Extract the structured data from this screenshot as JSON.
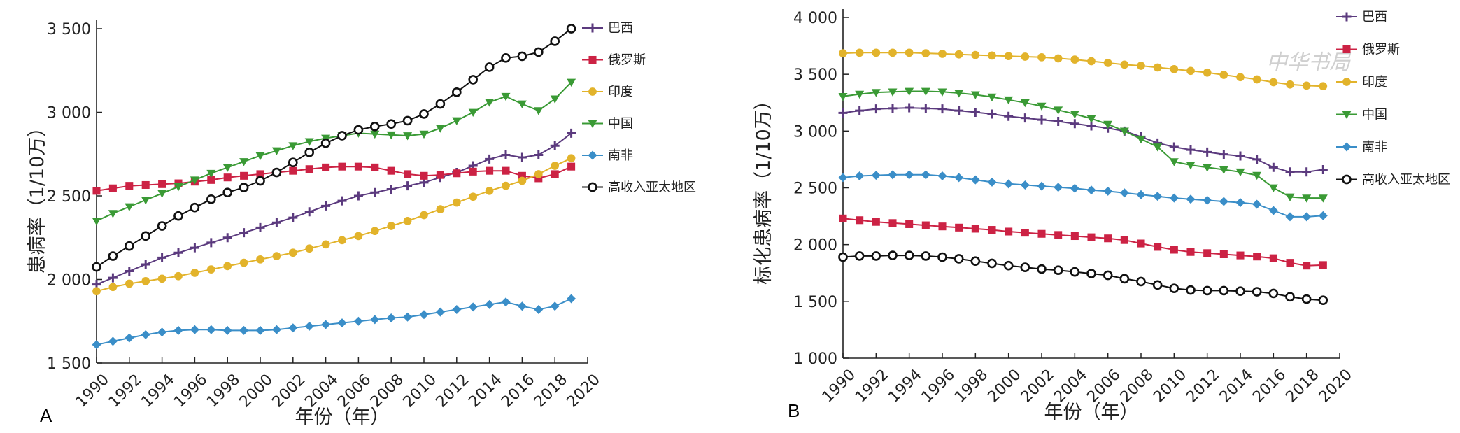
{
  "watermark": "中华书局",
  "chart_data": [
    {
      "panel": "A",
      "type": "line",
      "xlabel": "年份（年）",
      "ylabel": "患病率（1/10万）",
      "ylim": [
        1500,
        3500
      ],
      "yticks": [
        1500,
        2000,
        2500,
        3000,
        3500
      ],
      "ytick_labels": [
        "1 500",
        "2 000",
        "2 500",
        "3 000",
        "3 500"
      ],
      "xlim": [
        1990,
        2020
      ],
      "xticks": [
        "1990",
        "1992",
        "1994",
        "1996",
        "1998",
        "2000",
        "2002",
        "2004",
        "2006",
        "2008",
        "2010",
        "2012",
        "2014",
        "2016",
        "2018",
        "2020"
      ],
      "legend_position": "top-right",
      "x": [
        1990,
        1991,
        1992,
        1993,
        1994,
        1995,
        1996,
        1997,
        1998,
        1999,
        2000,
        2001,
        2002,
        2003,
        2004,
        2005,
        2006,
        2007,
        2008,
        2009,
        2010,
        2011,
        2012,
        2013,
        2014,
        2015,
        2016,
        2017,
        2018,
        2019
      ],
      "series": [
        {
          "name": "巴西",
          "color": "#5b3a7e",
          "marker": "plus",
          "values": [
            1970,
            2010,
            2050,
            2090,
            2130,
            2160,
            2190,
            2220,
            2250,
            2280,
            2310,
            2340,
            2370,
            2405,
            2440,
            2470,
            2500,
            2520,
            2540,
            2560,
            2580,
            2610,
            2640,
            2680,
            2720,
            2745,
            2730,
            2745,
            2800,
            2875
          ]
        },
        {
          "name": "俄罗斯",
          "color": "#cc2244",
          "marker": "square",
          "values": [
            2530,
            2545,
            2560,
            2565,
            2570,
            2575,
            2585,
            2595,
            2610,
            2620,
            2630,
            2640,
            2650,
            2660,
            2670,
            2675,
            2675,
            2670,
            2650,
            2630,
            2620,
            2625,
            2635,
            2645,
            2650,
            2650,
            2620,
            2605,
            2630,
            2675
          ]
        },
        {
          "name": "印度",
          "color": "#e2b32b",
          "marker": "circle",
          "values": [
            1930,
            1955,
            1975,
            1990,
            2005,
            2020,
            2040,
            2060,
            2080,
            2100,
            2120,
            2140,
            2160,
            2185,
            2210,
            2235,
            2260,
            2290,
            2320,
            2350,
            2385,
            2420,
            2460,
            2495,
            2530,
            2560,
            2590,
            2630,
            2680,
            2725
          ]
        },
        {
          "name": "中国",
          "color": "#3a9a35",
          "marker": "triangle",
          "values": [
            2350,
            2395,
            2435,
            2475,
            2515,
            2555,
            2595,
            2635,
            2670,
            2705,
            2740,
            2770,
            2800,
            2825,
            2845,
            2860,
            2875,
            2870,
            2865,
            2860,
            2870,
            2905,
            2950,
            3000,
            3060,
            3095,
            3050,
            3010,
            3080,
            3180
          ]
        },
        {
          "name": "南非",
          "color": "#3a8ec8",
          "marker": "diamond",
          "values": [
            1610,
            1630,
            1650,
            1670,
            1685,
            1695,
            1700,
            1700,
            1695,
            1695,
            1695,
            1700,
            1710,
            1720,
            1730,
            1740,
            1750,
            1760,
            1770,
            1775,
            1790,
            1805,
            1820,
            1835,
            1850,
            1865,
            1840,
            1820,
            1840,
            1885
          ]
        },
        {
          "name": "高收入亚太地区",
          "color": "#111111",
          "marker": "ocircle",
          "values": [
            2075,
            2140,
            2200,
            2260,
            2320,
            2380,
            2430,
            2480,
            2520,
            2550,
            2590,
            2640,
            2700,
            2760,
            2815,
            2860,
            2895,
            2915,
            2930,
            2950,
            2990,
            3050,
            3120,
            3195,
            3270,
            3325,
            3335,
            3360,
            3425,
            3500
          ]
        }
      ]
    },
    {
      "panel": "B",
      "type": "line",
      "xlabel": "年份（年）",
      "ylabel": "标化患病率（1/10万）",
      "ylim": [
        1000,
        4000
      ],
      "yticks": [
        1000,
        1500,
        2000,
        2500,
        3000,
        3500,
        4000
      ],
      "ytick_labels": [
        "1 000",
        "1 500",
        "2 000",
        "2 500",
        "3 000",
        "3 500",
        "4 000"
      ],
      "xlim": [
        1990,
        2020
      ],
      "xticks": [
        "1990",
        "1992",
        "1994",
        "1996",
        "1998",
        "2000",
        "2002",
        "2004",
        "2006",
        "2008",
        "2010",
        "2012",
        "2014",
        "2016",
        "2018",
        "2020"
      ],
      "legend_position": "top-right",
      "x": [
        1990,
        1991,
        1992,
        1993,
        1994,
        1995,
        1996,
        1997,
        1998,
        1999,
        2000,
        2001,
        2002,
        2003,
        2004,
        2005,
        2006,
        2007,
        2008,
        2009,
        2010,
        2011,
        2012,
        2013,
        2014,
        2015,
        2016,
        2017,
        2018,
        2019
      ],
      "series": [
        {
          "name": "巴西",
          "color": "#5b3a7e",
          "marker": "plus",
          "values": [
            3160,
            3180,
            3195,
            3200,
            3205,
            3200,
            3195,
            3180,
            3165,
            3150,
            3130,
            3115,
            3100,
            3085,
            3065,
            3045,
            3025,
            3000,
            2950,
            2895,
            2860,
            2835,
            2815,
            2795,
            2780,
            2750,
            2680,
            2640,
            2640,
            2660
          ]
        },
        {
          "name": "俄罗斯",
          "color": "#cc2244",
          "marker": "square",
          "values": [
            2230,
            2215,
            2200,
            2190,
            2180,
            2170,
            2160,
            2150,
            2140,
            2130,
            2115,
            2105,
            2095,
            2085,
            2075,
            2065,
            2055,
            2040,
            2010,
            1980,
            1955,
            1935,
            1925,
            1915,
            1905,
            1895,
            1880,
            1840,
            1815,
            1820
          ]
        },
        {
          "name": "印度",
          "color": "#e2b32b",
          "marker": "circle",
          "values": [
            3685,
            3690,
            3690,
            3690,
            3690,
            3685,
            3680,
            3675,
            3670,
            3665,
            3660,
            3655,
            3650,
            3640,
            3630,
            3615,
            3600,
            3585,
            3575,
            3560,
            3545,
            3530,
            3515,
            3495,
            3475,
            3455,
            3430,
            3410,
            3400,
            3395
          ]
        },
        {
          "name": "中国",
          "color": "#3a9a35",
          "marker": "triangle",
          "values": [
            3305,
            3325,
            3340,
            3345,
            3350,
            3350,
            3345,
            3335,
            3320,
            3300,
            3275,
            3250,
            3220,
            3185,
            3150,
            3110,
            3060,
            3000,
            2930,
            2860,
            2730,
            2700,
            2680,
            2660,
            2640,
            2610,
            2500,
            2420,
            2410,
            2410
          ]
        },
        {
          "name": "南非",
          "color": "#3a8ec8",
          "marker": "diamond",
          "values": [
            2590,
            2605,
            2610,
            2615,
            2615,
            2615,
            2605,
            2590,
            2570,
            2550,
            2535,
            2525,
            2515,
            2505,
            2495,
            2480,
            2470,
            2455,
            2440,
            2425,
            2410,
            2400,
            2390,
            2380,
            2370,
            2355,
            2300,
            2245,
            2245,
            2255
          ]
        },
        {
          "name": "高收入亚太地区",
          "color": "#111111",
          "marker": "ocircle",
          "values": [
            1890,
            1900,
            1900,
            1905,
            1905,
            1900,
            1890,
            1875,
            1855,
            1835,
            1815,
            1800,
            1785,
            1775,
            1760,
            1745,
            1730,
            1700,
            1675,
            1645,
            1615,
            1600,
            1595,
            1595,
            1590,
            1585,
            1570,
            1540,
            1520,
            1510
          ]
        }
      ]
    }
  ]
}
